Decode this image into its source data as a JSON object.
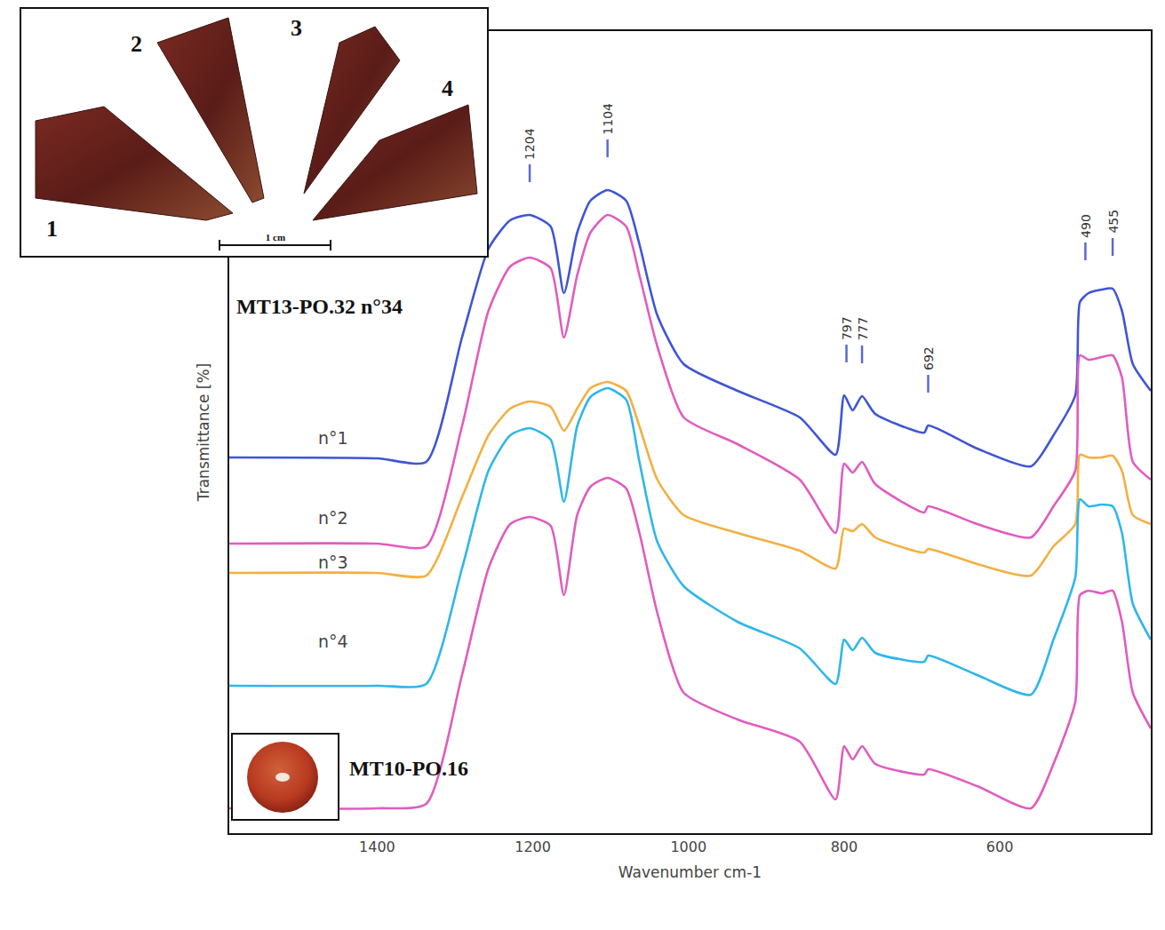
{
  "chart_data": {
    "type": "line",
    "x_label": "Wavenumber cm-1",
    "y_label": "Transmittance [%]",
    "xlim": [
      1590,
      406
    ],
    "xticks": [
      1400,
      1200,
      1000,
      800,
      600
    ],
    "ylim": [
      62,
      965
    ],
    "tick_labels": "x",
    "grid": false,
    "x": [
      1590,
      1400,
      1337,
      1291,
      1257,
      1229,
      1204,
      1177,
      1160,
      1143,
      1126,
      1104,
      1080,
      1063,
      1040,
      1006,
      937,
      857,
      811,
      800,
      789,
      777,
      760,
      697,
      692,
      629,
      560,
      531,
      503,
      497,
      486,
      469,
      455,
      443,
      429,
      406
    ],
    "series": [
      {
        "name": "n°1",
        "color": "#3f55d6",
        "values": [
          485,
          484,
          480,
          620,
          720,
          752,
          758,
          745,
          670,
          738,
          774,
          786,
          774,
          725,
          645,
          590,
          560,
          530,
          488,
          555,
          538,
          554,
          534,
          513,
          521,
          495,
          475,
          510,
          555,
          660,
          670,
          674,
          675,
          650,
          590,
          560
        ]
      },
      {
        "name": "n°2",
        "color": "#e05cc0",
        "values": [
          388,
          388,
          385,
          520,
          650,
          700,
          710,
          698,
          620,
          690,
          738,
          758,
          745,
          690,
          610,
          530,
          500,
          460,
          400,
          478,
          468,
          480,
          455,
          423,
          430,
          410,
          395,
          430,
          470,
          600,
          595,
          598,
          600,
          575,
          480,
          460
        ]
      },
      {
        "name": "n°3",
        "color": "#f2b041",
        "values": [
          355,
          355,
          352,
          440,
          510,
          540,
          548,
          542,
          515,
          540,
          563,
          570,
          560,
          520,
          460,
          420,
          400,
          380,
          360,
          405,
          402,
          410,
          395,
          378,
          382,
          365,
          352,
          385,
          410,
          488,
          485,
          485,
          487,
          470,
          420,
          410
        ]
      },
      {
        "name": "n°4",
        "color": "#2fb6ea",
        "values": [
          228,
          228,
          230,
          360,
          470,
          510,
          518,
          505,
          435,
          520,
          553,
          563,
          550,
          480,
          390,
          340,
          300,
          270,
          230,
          280,
          268,
          282,
          265,
          255,
          262,
          240,
          218,
          280,
          350,
          438,
          430,
          432,
          430,
          400,
          320,
          280
        ]
      },
      {
        "name": "MT10-PO.16",
        "color": "#e05cc0",
        "values": [
          90,
          90,
          95,
          240,
          360,
          410,
          418,
          408,
          330,
          420,
          452,
          462,
          450,
          400,
          310,
          220,
          190,
          165,
          100,
          160,
          145,
          160,
          140,
          128,
          134,
          115,
          90,
          140,
          210,
          330,
          335,
          332,
          335,
          300,
          220,
          180
        ]
      }
    ],
    "peak_labels": [
      1204,
      1104,
      797,
      777,
      692,
      490,
      455
    ],
    "annotations": [
      "MT13-PO.32 n°34"
    ],
    "photo_labels": [
      "1",
      "2",
      "3",
      "4"
    ],
    "scale_label": "1 cm"
  }
}
